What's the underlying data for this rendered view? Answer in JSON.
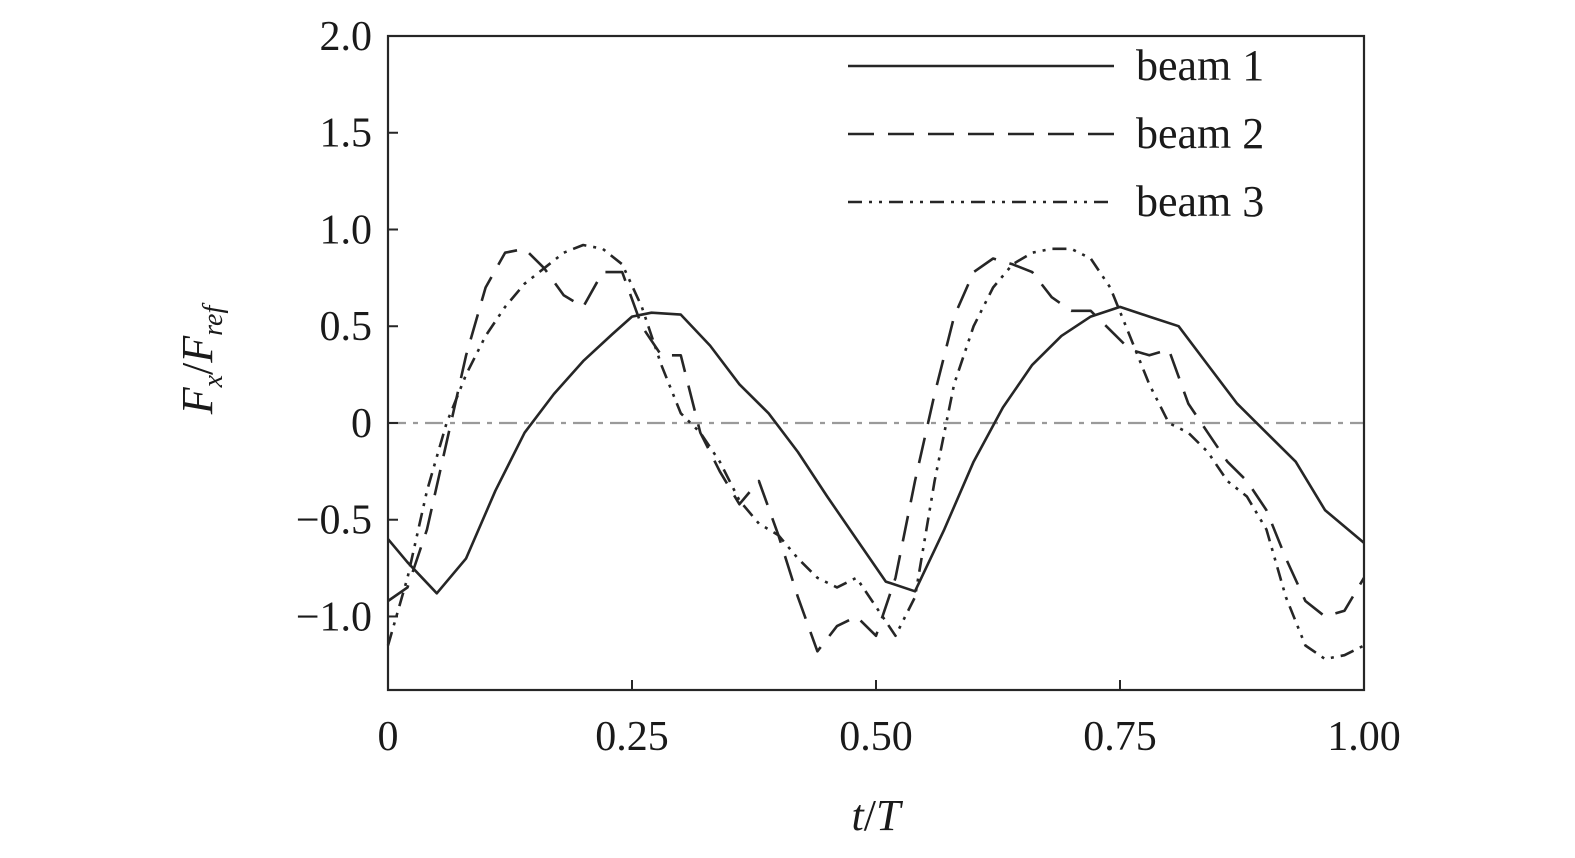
{
  "chart_data": {
    "type": "line",
    "title": "",
    "xlabel_italic": "t",
    "xlabel_sep": "/",
    "xlabel_italic2": "T",
    "ylabel_main": "F",
    "ylabel_sub": "x",
    "ylabel_sep": "/",
    "ylabel_main2": "F",
    "ylabel_sub2": "ref",
    "xlim": [
      0,
      1.0
    ],
    "ylim": [
      -1.38,
      2.0
    ],
    "xticks": [
      0,
      0.25,
      0.5,
      0.75,
      1.0
    ],
    "xtick_labels": [
      "0",
      "0.25",
      "0.50",
      "0.75",
      "1.00"
    ],
    "yticks": [
      -1.0,
      -0.5,
      0,
      0.5,
      1.0,
      1.5,
      2.0
    ],
    "ytick_labels": [
      "−1.0",
      "−0.5",
      "0",
      "0.5",
      "1.0",
      "1.5",
      "2.0"
    ],
    "grid": false,
    "legend_position": "top-right",
    "reference_line": {
      "y": 0,
      "style": "dash-dot",
      "color": "#9a9a9a"
    },
    "series": [
      {
        "name": "beam 1",
        "style": "solid",
        "x": [
          0,
          0.02,
          0.05,
          0.08,
          0.11,
          0.14,
          0.17,
          0.2,
          0.23,
          0.25,
          0.27,
          0.3,
          0.33,
          0.36,
          0.39,
          0.42,
          0.45,
          0.48,
          0.51,
          0.54,
          0.57,
          0.6,
          0.63,
          0.66,
          0.69,
          0.72,
          0.75,
          0.78,
          0.81,
          0.84,
          0.87,
          0.9,
          0.93,
          0.96,
          1.0
        ],
        "y": [
          -0.6,
          -0.72,
          -0.88,
          -0.7,
          -0.35,
          -0.05,
          0.15,
          0.32,
          0.46,
          0.55,
          0.57,
          0.56,
          0.4,
          0.2,
          0.05,
          -0.15,
          -0.38,
          -0.6,
          -0.82,
          -0.87,
          -0.55,
          -0.2,
          0.08,
          0.3,
          0.45,
          0.55,
          0.6,
          0.55,
          0.5,
          0.3,
          0.1,
          -0.05,
          -0.2,
          -0.45,
          -0.62
        ]
      },
      {
        "name": "beam 2",
        "style": "dashed",
        "x": [
          0,
          0.02,
          0.04,
          0.06,
          0.08,
          0.1,
          0.12,
          0.14,
          0.16,
          0.18,
          0.2,
          0.22,
          0.24,
          0.26,
          0.28,
          0.3,
          0.32,
          0.34,
          0.36,
          0.38,
          0.4,
          0.42,
          0.44,
          0.46,
          0.48,
          0.5,
          0.52,
          0.54,
          0.56,
          0.58,
          0.6,
          0.62,
          0.64,
          0.66,
          0.68,
          0.7,
          0.72,
          0.74,
          0.76,
          0.78,
          0.8,
          0.82,
          0.84,
          0.86,
          0.88,
          0.9,
          0.92,
          0.94,
          0.96,
          0.98,
          1.0
        ],
        "y": [
          -0.92,
          -0.85,
          -0.55,
          -0.1,
          0.35,
          0.7,
          0.88,
          0.9,
          0.8,
          0.66,
          0.6,
          0.78,
          0.78,
          0.5,
          0.35,
          0.35,
          -0.05,
          -0.25,
          -0.42,
          -0.3,
          -0.58,
          -0.9,
          -1.18,
          -1.05,
          -1.0,
          -1.1,
          -0.8,
          -0.3,
          0.15,
          0.55,
          0.78,
          0.85,
          0.82,
          0.78,
          0.65,
          0.58,
          0.58,
          0.48,
          0.38,
          0.35,
          0.38,
          0.1,
          -0.05,
          -0.2,
          -0.3,
          -0.45,
          -0.7,
          -0.92,
          -1.0,
          -0.97,
          -0.8
        ]
      },
      {
        "name": "beam 3",
        "style": "dash-dot-dot",
        "x": [
          0,
          0.02,
          0.04,
          0.06,
          0.08,
          0.1,
          0.12,
          0.14,
          0.16,
          0.18,
          0.2,
          0.22,
          0.24,
          0.26,
          0.28,
          0.3,
          0.32,
          0.34,
          0.36,
          0.38,
          0.4,
          0.42,
          0.44,
          0.46,
          0.48,
          0.5,
          0.52,
          0.54,
          0.56,
          0.58,
          0.6,
          0.62,
          0.64,
          0.66,
          0.68,
          0.7,
          0.72,
          0.74,
          0.76,
          0.78,
          0.8,
          0.82,
          0.84,
          0.86,
          0.88,
          0.9,
          0.92,
          0.94,
          0.96,
          0.98,
          1.0
        ],
        "y": [
          -1.15,
          -0.8,
          -0.35,
          0.0,
          0.25,
          0.45,
          0.6,
          0.72,
          0.8,
          0.88,
          0.92,
          0.9,
          0.82,
          0.6,
          0.3,
          0.05,
          -0.05,
          -0.2,
          -0.4,
          -0.52,
          -0.58,
          -0.7,
          -0.8,
          -0.85,
          -0.8,
          -0.95,
          -1.1,
          -0.9,
          -0.3,
          0.2,
          0.5,
          0.7,
          0.82,
          0.88,
          0.9,
          0.9,
          0.85,
          0.7,
          0.45,
          0.2,
          0.0,
          -0.05,
          -0.15,
          -0.3,
          -0.38,
          -0.55,
          -0.9,
          -1.15,
          -1.22,
          -1.2,
          -1.15
        ]
      }
    ]
  }
}
